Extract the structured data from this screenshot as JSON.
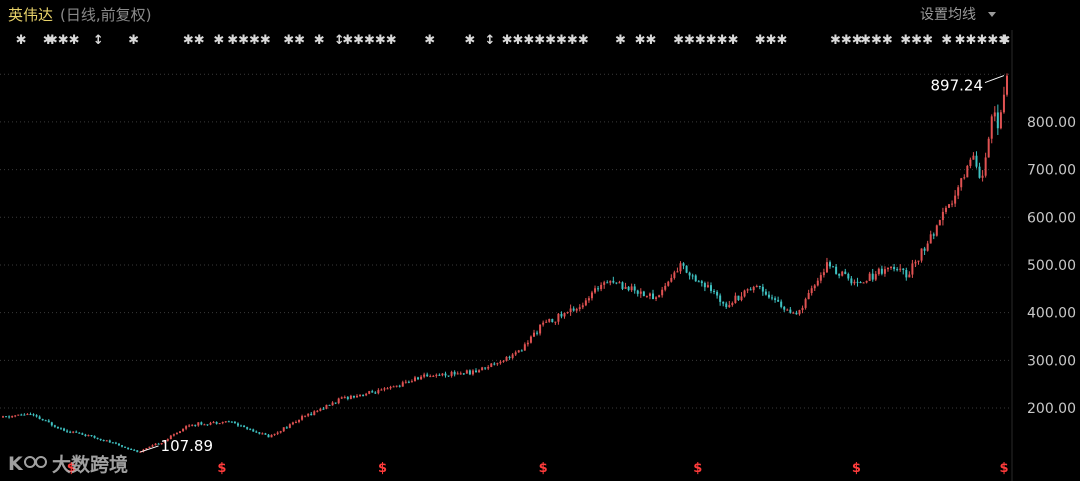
{
  "header": {
    "title": "英伟达",
    "subtitle": "(日线,前复权)",
    "settings_label": "设置均线",
    "settings_icon": "caret-down-icon"
  },
  "watermark": {
    "text": "大数跨境",
    "logo_text": "K",
    "icon": "brand-logo-icon"
  },
  "colors": {
    "background": "#000000",
    "up": "#e05252",
    "down": "#3fc2c2",
    "grid": "#3a3a3a",
    "title": "#e8d26a",
    "dividend": "#ff3b3b"
  },
  "chart_data": {
    "type": "candlestick",
    "title": "英伟达",
    "subtitle": "(日线,前复权)",
    "xlabel": "",
    "ylabel": "",
    "grid": true,
    "ylim": [
      70,
      955
    ],
    "yticks": [
      200,
      300,
      400,
      500,
      600,
      700,
      800
    ],
    "ytick_labels": [
      "200.00",
      "300.00",
      "400.00",
      "500.00",
      "600.00",
      "700.00",
      "800.00"
    ],
    "annotations": [
      {
        "label": "107.89",
        "value": 107.89,
        "kind": "low"
      },
      {
        "label": "897.24",
        "value": 897.24,
        "kind": "high"
      }
    ],
    "trend": [
      {
        "t": 0.0,
        "p": 180
      },
      {
        "t": 0.025,
        "p": 188
      },
      {
        "t": 0.06,
        "p": 155
      },
      {
        "t": 0.1,
        "p": 133
      },
      {
        "t": 0.135,
        "p": 107.89
      },
      {
        "t": 0.16,
        "p": 130
      },
      {
        "t": 0.185,
        "p": 165
      },
      {
        "t": 0.225,
        "p": 172
      },
      {
        "t": 0.265,
        "p": 140
      },
      {
        "t": 0.3,
        "p": 182
      },
      {
        "t": 0.34,
        "p": 222
      },
      {
        "t": 0.38,
        "p": 237
      },
      {
        "t": 0.42,
        "p": 268
      },
      {
        "t": 0.47,
        "p": 276
      },
      {
        "t": 0.515,
        "p": 318
      },
      {
        "t": 0.535,
        "p": 372
      },
      {
        "t": 0.58,
        "p": 420
      },
      {
        "t": 0.6,
        "p": 472
      },
      {
        "t": 0.65,
        "p": 430
      },
      {
        "t": 0.675,
        "p": 500
      },
      {
        "t": 0.72,
        "p": 418
      },
      {
        "t": 0.75,
        "p": 460
      },
      {
        "t": 0.775,
        "p": 415
      },
      {
        "t": 0.79,
        "p": 390
      },
      {
        "t": 0.82,
        "p": 500
      },
      {
        "t": 0.85,
        "p": 460
      },
      {
        "t": 0.88,
        "p": 495
      },
      {
        "t": 0.9,
        "p": 480
      },
      {
        "t": 0.925,
        "p": 560
      },
      {
        "t": 0.95,
        "p": 650
      },
      {
        "t": 0.965,
        "p": 735
      },
      {
        "t": 0.975,
        "p": 680
      },
      {
        "t": 0.985,
        "p": 820
      },
      {
        "t": 0.993,
        "p": 795
      },
      {
        "t": 1.0,
        "p": 897.24
      }
    ],
    "event_markers": [
      {
        "t": 0.018,
        "symbol": "✱"
      },
      {
        "t": 0.045,
        "symbol": "✱"
      },
      {
        "t": 0.06,
        "symbol": "✱✱✱"
      },
      {
        "t": 0.095,
        "symbol": "↕"
      },
      {
        "t": 0.13,
        "symbol": "✱"
      },
      {
        "t": 0.19,
        "symbol": "✱✱"
      },
      {
        "t": 0.215,
        "symbol": "✱"
      },
      {
        "t": 0.245,
        "symbol": "✱✱✱✱"
      },
      {
        "t": 0.29,
        "symbol": "✱✱"
      },
      {
        "t": 0.315,
        "symbol": "✱"
      },
      {
        "t": 0.335,
        "symbol": "↕"
      },
      {
        "t": 0.365,
        "symbol": "✱✱✱✱✱"
      },
      {
        "t": 0.425,
        "symbol": "✱"
      },
      {
        "t": 0.465,
        "symbol": "✱"
      },
      {
        "t": 0.485,
        "symbol": "↕"
      },
      {
        "t": 0.54,
        "symbol": "✱✱✱✱✱✱✱✱"
      },
      {
        "t": 0.615,
        "symbol": "✱"
      },
      {
        "t": 0.64,
        "symbol": "✱✱"
      },
      {
        "t": 0.7,
        "symbol": "✱✱✱✱✱✱"
      },
      {
        "t": 0.765,
        "symbol": "✱✱✱"
      },
      {
        "t": 0.84,
        "symbol": "✱✱✱"
      },
      {
        "t": 0.87,
        "symbol": "✱✱✱"
      },
      {
        "t": 0.91,
        "symbol": "✱✱✱"
      },
      {
        "t": 0.94,
        "symbol": "✱"
      },
      {
        "t": 0.975,
        "symbol": "✱✱✱✱✱"
      },
      {
        "t": 0.998,
        "symbol": "✱"
      }
    ],
    "dividend_markers": [
      {
        "t": 0.068,
        "symbol": "$"
      },
      {
        "t": 0.218,
        "symbol": "$"
      },
      {
        "t": 0.378,
        "symbol": "$"
      },
      {
        "t": 0.538,
        "symbol": "$"
      },
      {
        "t": 0.692,
        "symbol": "$"
      },
      {
        "t": 0.85,
        "symbol": "$"
      },
      {
        "t": 1.0,
        "symbol": "$"
      }
    ]
  }
}
